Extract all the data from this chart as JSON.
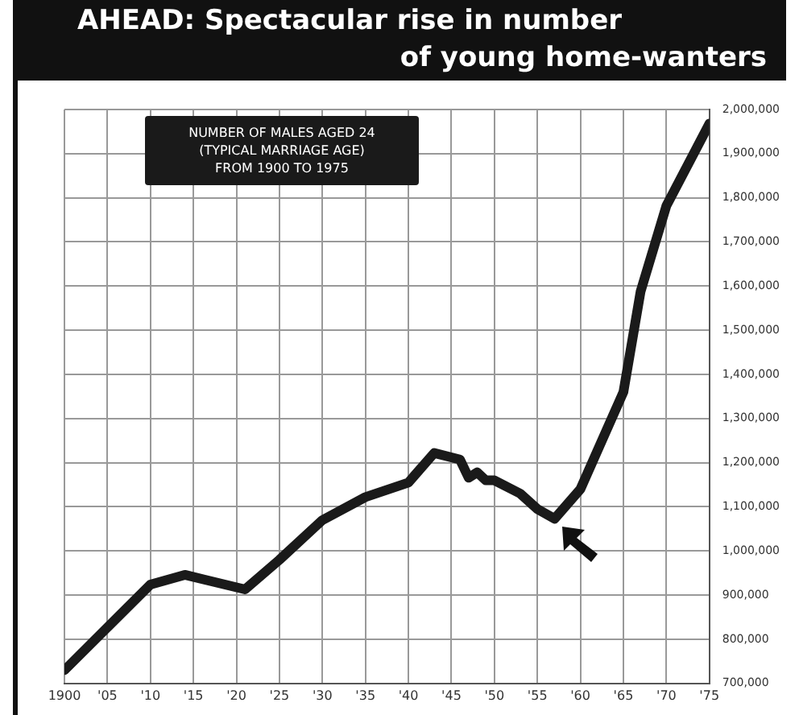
{
  "chart_data": {
    "type": "line",
    "title": "AHEAD: Spectacular rise in number\nof young home-wanters",
    "annotations": [
      "NUMBER OF MALES AGED 24\n(TYPICAL MARRIAGE AGE)\nFROM 1900 TO 1975"
    ],
    "x": [
      1900,
      1910,
      1914,
      1921,
      1925,
      1930,
      1935,
      1940,
      1943,
      1946,
      1947,
      1948,
      1949,
      1950,
      1953,
      1955,
      1957,
      1960,
      1965,
      1967,
      1970,
      1975
    ],
    "series": [
      {
        "color": "#1a1a1a",
        "values": [
          730000,
          924000,
          946000,
          913000,
          980000,
          1070000,
          1122000,
          1155000,
          1222000,
          1207000,
          1166000,
          1178000,
          1160000,
          1160000,
          1130000,
          1095000,
          1073000,
          1140000,
          1360000,
          1588000,
          1782000,
          1968000
        ]
      }
    ],
    "xlim": [
      1900,
      1975
    ],
    "xticks": [
      1900,
      {
        "value": 1905,
        "label": "'05"
      },
      {
        "value": 1910,
        "label": "'10"
      },
      {
        "value": 1915,
        "label": "'15"
      },
      {
        "value": 1920,
        "label": "'20"
      },
      {
        "value": 1925,
        "label": "'25"
      },
      {
        "value": 1930,
        "label": "'30"
      },
      {
        "value": 1935,
        "label": "'35"
      },
      {
        "value": 1940,
        "label": "'40"
      },
      {
        "value": 1945,
        "label": "'45"
      },
      {
        "value": 1950,
        "label": "'50"
      },
      {
        "value": 1955,
        "label": "'55"
      },
      {
        "value": 1960,
        "label": "'60"
      },
      {
        "value": 1965,
        "label": "'65"
      },
      {
        "value": 1970,
        "label": "'70"
      },
      {
        "value": 1975,
        "label": "'75"
      }
    ],
    "ylim": [
      700000,
      2000000
    ],
    "yticks": [
      {
        "value": 700000,
        "label": "700,000"
      },
      {
        "value": 800000,
        "label": "800,000"
      },
      {
        "value": 900000,
        "label": "900,000"
      },
      {
        "value": 1000000,
        "label": "1,000,000"
      },
      {
        "value": 1100000,
        "label": "1,100,000"
      },
      {
        "value": 1200000,
        "label": "1,200,000"
      },
      {
        "value": 1300000,
        "label": "1,300,000"
      },
      {
        "value": 1400000,
        "label": "1,400,000"
      },
      {
        "value": 1500000,
        "label": "1,500,000"
      },
      {
        "value": 1600000,
        "label": "1,600,000"
      },
      {
        "value": 1700000,
        "label": "1,700,000"
      },
      {
        "value": 1800000,
        "label": "1,800,000"
      },
      {
        "value": 1900000,
        "label": "1,900,000"
      },
      {
        "value": 2000000,
        "label": "2,000,000"
      }
    ],
    "grid": true,
    "marker": "none",
    "line_style": "solid"
  }
}
